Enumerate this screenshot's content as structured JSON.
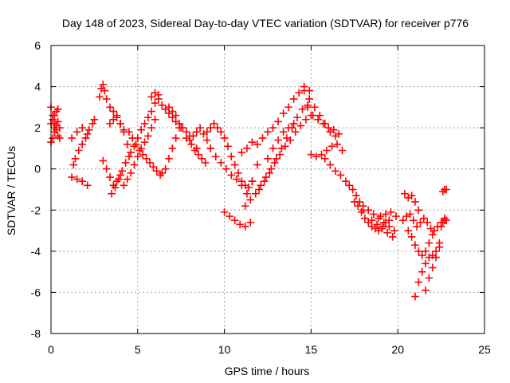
{
  "chart_data": {
    "type": "scatter",
    "title": "Day 148 of 2023, Sidereal Day-to-day VTEC variation (SDTVAR) for receiver p776",
    "xlabel": "GPS time / hours",
    "ylabel": "SDTVAR / TECUs",
    "xlim": [
      0,
      25
    ],
    "ylim": [
      -8,
      6
    ],
    "xticks": [
      0,
      5,
      10,
      15,
      20,
      25
    ],
    "yticks": [
      -8,
      -6,
      -4,
      -2,
      0,
      2,
      4,
      6
    ],
    "grid": true,
    "marker": "+",
    "marker_color": "#ff0000",
    "series": [
      {
        "name": "s1",
        "x": [
          0.0,
          0.1,
          0.2,
          0.3,
          0.4,
          0.5
        ],
        "y": [
          3.0,
          2.6,
          2.2,
          1.9,
          1.6,
          1.5
        ]
      },
      {
        "name": "s2",
        "x": [
          0.0,
          0.1,
          0.2,
          0.3,
          0.4,
          0.5
        ],
        "y": [
          1.3,
          1.5,
          1.8,
          2.1,
          2.3,
          2.0
        ]
      },
      {
        "name": "s3",
        "x": [
          0.0,
          0.1,
          0.2,
          0.3,
          0.4
        ],
        "y": [
          2.2,
          2.4,
          2.6,
          2.8,
          2.9
        ]
      },
      {
        "name": "s4",
        "x": [
          1.2,
          1.5,
          1.8,
          2.1,
          2.4
        ],
        "y": [
          1.5,
          1.8,
          2.0,
          1.7,
          2.2
        ]
      },
      {
        "name": "s5",
        "x": [
          1.3,
          1.4,
          1.6,
          1.8,
          2.0,
          2.2,
          2.5
        ],
        "y": [
          0.2,
          0.5,
          0.9,
          1.2,
          1.5,
          1.9,
          2.4
        ]
      },
      {
        "name": "s6",
        "x": [
          1.2,
          1.5,
          1.8,
          2.1
        ],
        "y": [
          -0.4,
          -0.5,
          -0.6,
          -0.8
        ]
      },
      {
        "name": "s7",
        "x": [
          2.8,
          2.9,
          3.0,
          3.1,
          3.2,
          3.4,
          3.6,
          3.8,
          4.0,
          4.2
        ],
        "y": [
          3.5,
          3.9,
          4.1,
          3.8,
          3.4,
          3.0,
          2.8,
          2.5,
          2.2,
          1.9
        ]
      },
      {
        "name": "s8",
        "x": [
          3.4,
          3.6,
          3.8,
          4.0,
          4.2,
          4.4,
          4.6,
          4.8,
          5.0,
          5.2,
          5.4,
          5.6,
          5.8,
          6.0,
          6.2
        ],
        "y": [
          2.2,
          2.4,
          2.6,
          2.2,
          1.8,
          1.2,
          0.8,
          1.1,
          1.5,
          1.9,
          2.2,
          2.5,
          2.8,
          3.2,
          3.6
        ]
      },
      {
        "name": "s9",
        "x": [
          3.5,
          3.7,
          3.9,
          4.1,
          4.3,
          4.5
        ],
        "y": [
          -1.2,
          -0.9,
          -0.5,
          -0.1,
          0.3,
          0.6
        ]
      },
      {
        "name": "s10",
        "x": [
          3.0,
          3.2,
          3.4,
          3.6,
          3.8,
          4.0
        ],
        "y": [
          0.4,
          0.0,
          -0.4,
          -0.8,
          -0.6,
          -0.3
        ]
      },
      {
        "name": "s11",
        "x": [
          4.2,
          4.4,
          4.6,
          4.8,
          5.0,
          5.2,
          5.4,
          5.6,
          5.8,
          6.0
        ],
        "y": [
          -0.8,
          -0.5,
          -0.2,
          0.2,
          0.6,
          1.0,
          1.3,
          1.6,
          2.0,
          2.4
        ]
      },
      {
        "name": "s12",
        "x": [
          4.5,
          4.7,
          4.9,
          5.1,
          5.3,
          5.5,
          5.7,
          5.9,
          6.1,
          6.3
        ],
        "y": [
          1.8,
          1.5,
          1.2,
          0.9,
          0.7,
          0.5,
          0.3,
          0.1,
          -0.1,
          -0.3
        ]
      },
      {
        "name": "s13",
        "x": [
          5.8,
          6.0,
          6.2,
          6.4,
          6.6,
          6.8,
          7.0,
          7.2,
          7.4,
          7.6,
          7.8,
          8.0
        ],
        "y": [
          3.5,
          3.7,
          3.4,
          3.1,
          2.9,
          2.7,
          2.5,
          2.3,
          2.2,
          2.0,
          1.8,
          1.6
        ]
      },
      {
        "name": "s14",
        "x": [
          6.4,
          6.6,
          6.8,
          7.0,
          7.2,
          7.4
        ],
        "y": [
          -0.2,
          0.0,
          0.5,
          1.0,
          1.5,
          2.0
        ]
      },
      {
        "name": "s15",
        "x": [
          6.8,
          7.0,
          7.2,
          7.5,
          7.8,
          8.1,
          8.4
        ],
        "y": [
          3.0,
          2.8,
          2.6,
          2.0,
          1.5,
          1.2,
          1.0
        ]
      },
      {
        "name": "s16",
        "x": [
          8.0,
          8.2,
          8.4,
          8.6,
          8.8,
          9.0,
          9.2
        ],
        "y": [
          1.4,
          1.6,
          1.8,
          2.0,
          1.7,
          1.4,
          1.0
        ]
      },
      {
        "name": "s17",
        "x": [
          8.3,
          8.5,
          8.7,
          8.9
        ],
        "y": [
          0.9,
          0.7,
          0.5,
          0.3
        ]
      },
      {
        "name": "s18",
        "x": [
          9.0,
          9.2,
          9.4,
          9.6,
          9.8,
          10.0,
          10.2,
          10.4,
          10.6,
          10.8,
          11.0,
          11.2,
          11.4,
          11.6
        ],
        "y": [
          1.8,
          2.0,
          2.2,
          2.0,
          1.8,
          1.5,
          1.1,
          0.6,
          0.2,
          -0.2,
          -0.6,
          -0.8,
          -0.9,
          -0.6
        ]
      },
      {
        "name": "s19",
        "x": [
          9.2,
          9.5,
          9.8,
          10.1,
          10.4,
          10.7,
          11.0,
          11.3,
          11.6,
          11.9
        ],
        "y": [
          1.0,
          0.6,
          0.3,
          0.0,
          -0.3,
          -0.5,
          -0.8,
          -1.2,
          -0.6,
          0.2
        ]
      },
      {
        "name": "s20",
        "x": [
          10.0,
          10.3,
          10.6,
          10.9,
          11.2,
          11.5
        ],
        "y": [
          -2.1,
          -2.3,
          -2.5,
          -2.7,
          -2.8,
          -2.6
        ]
      },
      {
        "name": "s21",
        "x": [
          11.0,
          11.3,
          11.6,
          11.9,
          12.2,
          12.5,
          12.8,
          13.1,
          13.4,
          13.7,
          14.0,
          14.3,
          14.6,
          14.9
        ],
        "y": [
          0.8,
          1.0,
          1.3,
          1.2,
          1.5,
          1.8,
          2.0,
          2.3,
          2.7,
          3.0,
          3.4,
          3.7,
          4.0,
          3.8
        ]
      },
      {
        "name": "s22",
        "x": [
          11.2,
          11.5,
          11.8,
          12.1,
          12.4,
          12.7,
          13.0,
          13.3,
          13.6,
          13.9,
          14.2,
          14.5,
          14.8
        ],
        "y": [
          -1.8,
          -1.5,
          -1.2,
          -0.8,
          -0.4,
          0.0,
          0.5,
          1.0,
          1.5,
          2.0,
          2.5,
          2.9,
          3.1
        ]
      },
      {
        "name": "s23",
        "x": [
          12.0,
          12.3,
          12.6,
          12.9,
          13.2,
          13.5,
          13.8,
          14.1,
          14.4,
          14.7,
          15.0
        ],
        "y": [
          -1.0,
          -0.6,
          -0.2,
          0.3,
          0.7,
          1.1,
          1.4,
          1.8,
          2.1,
          2.4,
          2.6
        ]
      },
      {
        "name": "s24",
        "x": [
          12.5,
          12.8,
          13.1,
          13.4,
          13.7,
          14.0
        ],
        "y": [
          0.5,
          1.0,
          1.4,
          1.8,
          2.0,
          2.2
        ]
      },
      {
        "name": "s25",
        "x": [
          14.6,
          14.9,
          15.2,
          15.5,
          15.8,
          16.1,
          16.4
        ],
        "y": [
          3.8,
          3.4,
          3.0,
          2.6,
          2.2,
          1.8,
          1.6
        ]
      },
      {
        "name": "s26",
        "x": [
          14.8,
          15.1,
          15.4,
          15.7,
          16.0,
          16.3,
          16.6
        ],
        "y": [
          3.0,
          2.6,
          2.4,
          2.2,
          2.0,
          1.9,
          1.7
        ]
      },
      {
        "name": "s27",
        "x": [
          15.0,
          15.3,
          15.6,
          15.9,
          16.2,
          16.5,
          16.8
        ],
        "y": [
          0.7,
          0.6,
          0.7,
          0.9,
          1.1,
          1.2,
          0.9
        ]
      },
      {
        "name": "s28",
        "x": [
          15.8,
          16.1,
          16.4,
          16.7
        ],
        "y": [
          0.5,
          0.2,
          -0.1,
          -0.3
        ]
      },
      {
        "name": "s29",
        "x": [
          17.0,
          17.2,
          17.4,
          17.6,
          17.8,
          18.0
        ],
        "y": [
          -0.6,
          -0.8,
          -1.0,
          -1.3,
          -1.6,
          -2.0
        ]
      },
      {
        "name": "s30",
        "x": [
          17.5,
          17.7,
          17.9,
          18.1,
          18.3,
          18.5,
          18.7,
          18.9,
          19.1,
          19.3,
          19.5
        ],
        "y": [
          -1.6,
          -1.8,
          -2.1,
          -2.4,
          -2.6,
          -2.8,
          -2.9,
          -3.0,
          -2.8,
          -2.6,
          -2.5
        ]
      },
      {
        "name": "s31",
        "x": [
          18.0,
          18.3,
          18.6,
          18.9,
          19.2,
          19.5,
          19.8
        ],
        "y": [
          -1.8,
          -2.0,
          -2.2,
          -2.4,
          -2.6,
          -2.8,
          -3.0
        ]
      },
      {
        "name": "s32",
        "x": [
          18.5,
          18.8,
          19.1,
          19.4,
          19.7
        ],
        "y": [
          -2.5,
          -2.7,
          -2.9,
          -3.1,
          -3.3
        ]
      },
      {
        "name": "s33",
        "x": [
          19.0,
          19.3,
          19.6,
          19.9
        ],
        "y": [
          -2.3,
          -2.2,
          -2.1,
          -2.3
        ]
      },
      {
        "name": "s34",
        "x": [
          20.3,
          20.5,
          20.7,
          20.9,
          21.1,
          21.3,
          21.5,
          21.7,
          21.9,
          22.1,
          22.3,
          22.5,
          22.7
        ],
        "y": [
          -2.5,
          -2.3,
          -2.2,
          -2.5,
          -2.8,
          -2.6,
          -2.4,
          -2.6,
          -2.9,
          -3.0,
          -2.8,
          -2.6,
          -2.5
        ]
      },
      {
        "name": "s35",
        "x": [
          20.6,
          20.8,
          21.0,
          21.2,
          21.4,
          21.6,
          21.8,
          22.0
        ],
        "y": [
          -3.0,
          -3.3,
          -3.7,
          -4.0,
          -4.2,
          -4.0,
          -3.6,
          -3.2
        ]
      },
      {
        "name": "s36",
        "x": [
          20.4,
          20.6,
          20.8,
          21.0,
          21.2
        ],
        "y": [
          -1.2,
          -1.4,
          -1.3,
          -1.6,
          -2.0
        ]
      },
      {
        "name": "s37",
        "x": [
          21.0,
          21.2,
          21.4,
          21.6,
          21.8,
          22.0,
          22.2,
          22.4
        ],
        "y": [
          -6.2,
          -5.5,
          -5.0,
          -4.6,
          -4.3,
          -4.2,
          -4.0,
          -3.6
        ]
      },
      {
        "name": "s38",
        "x": [
          21.6,
          21.8,
          22.0,
          22.2,
          22.4
        ],
        "y": [
          -5.9,
          -5.3,
          -4.8,
          -4.3,
          -3.8
        ]
      },
      {
        "name": "s39",
        "x": [
          22.5,
          22.6,
          22.7,
          22.8
        ],
        "y": [
          -2.8,
          -2.6,
          -2.4,
          -2.5
        ]
      },
      {
        "name": "s40",
        "x": [
          22.6,
          22.7,
          22.8
        ],
        "y": [
          -1.1,
          -1.0,
          -1.0
        ]
      }
    ]
  }
}
